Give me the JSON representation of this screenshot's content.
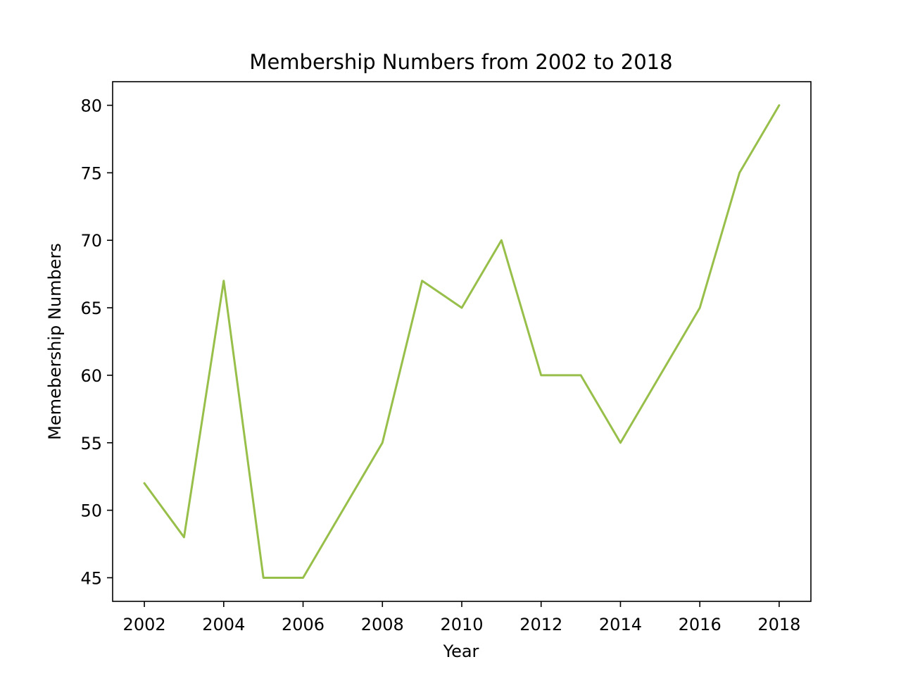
{
  "chart_data": {
    "type": "line",
    "title": "Membership Numbers from 2002 to 2018",
    "xlabel": "Year",
    "ylabel": "Memebership Numbers",
    "x": [
      2002,
      2003,
      2004,
      2005,
      2006,
      2007,
      2008,
      2009,
      2010,
      2011,
      2012,
      2013,
      2014,
      2015,
      2016,
      2017,
      2018
    ],
    "series": [
      {
        "values": [
          52,
          48,
          67,
          45,
          45,
          50,
          55,
          67,
          65,
          70,
          60,
          60,
          55,
          60,
          65,
          75,
          80
        ],
        "color": "#97bf4a"
      }
    ],
    "xlim": [
      2001.2,
      2018.8
    ],
    "ylim": [
      43.25,
      81.75
    ],
    "xticks": [
      2002,
      2004,
      2006,
      2008,
      2010,
      2012,
      2014,
      2016,
      2018
    ],
    "yticks": [
      45,
      50,
      55,
      60,
      65,
      70,
      75,
      80
    ],
    "grid": false,
    "legend": "none"
  }
}
